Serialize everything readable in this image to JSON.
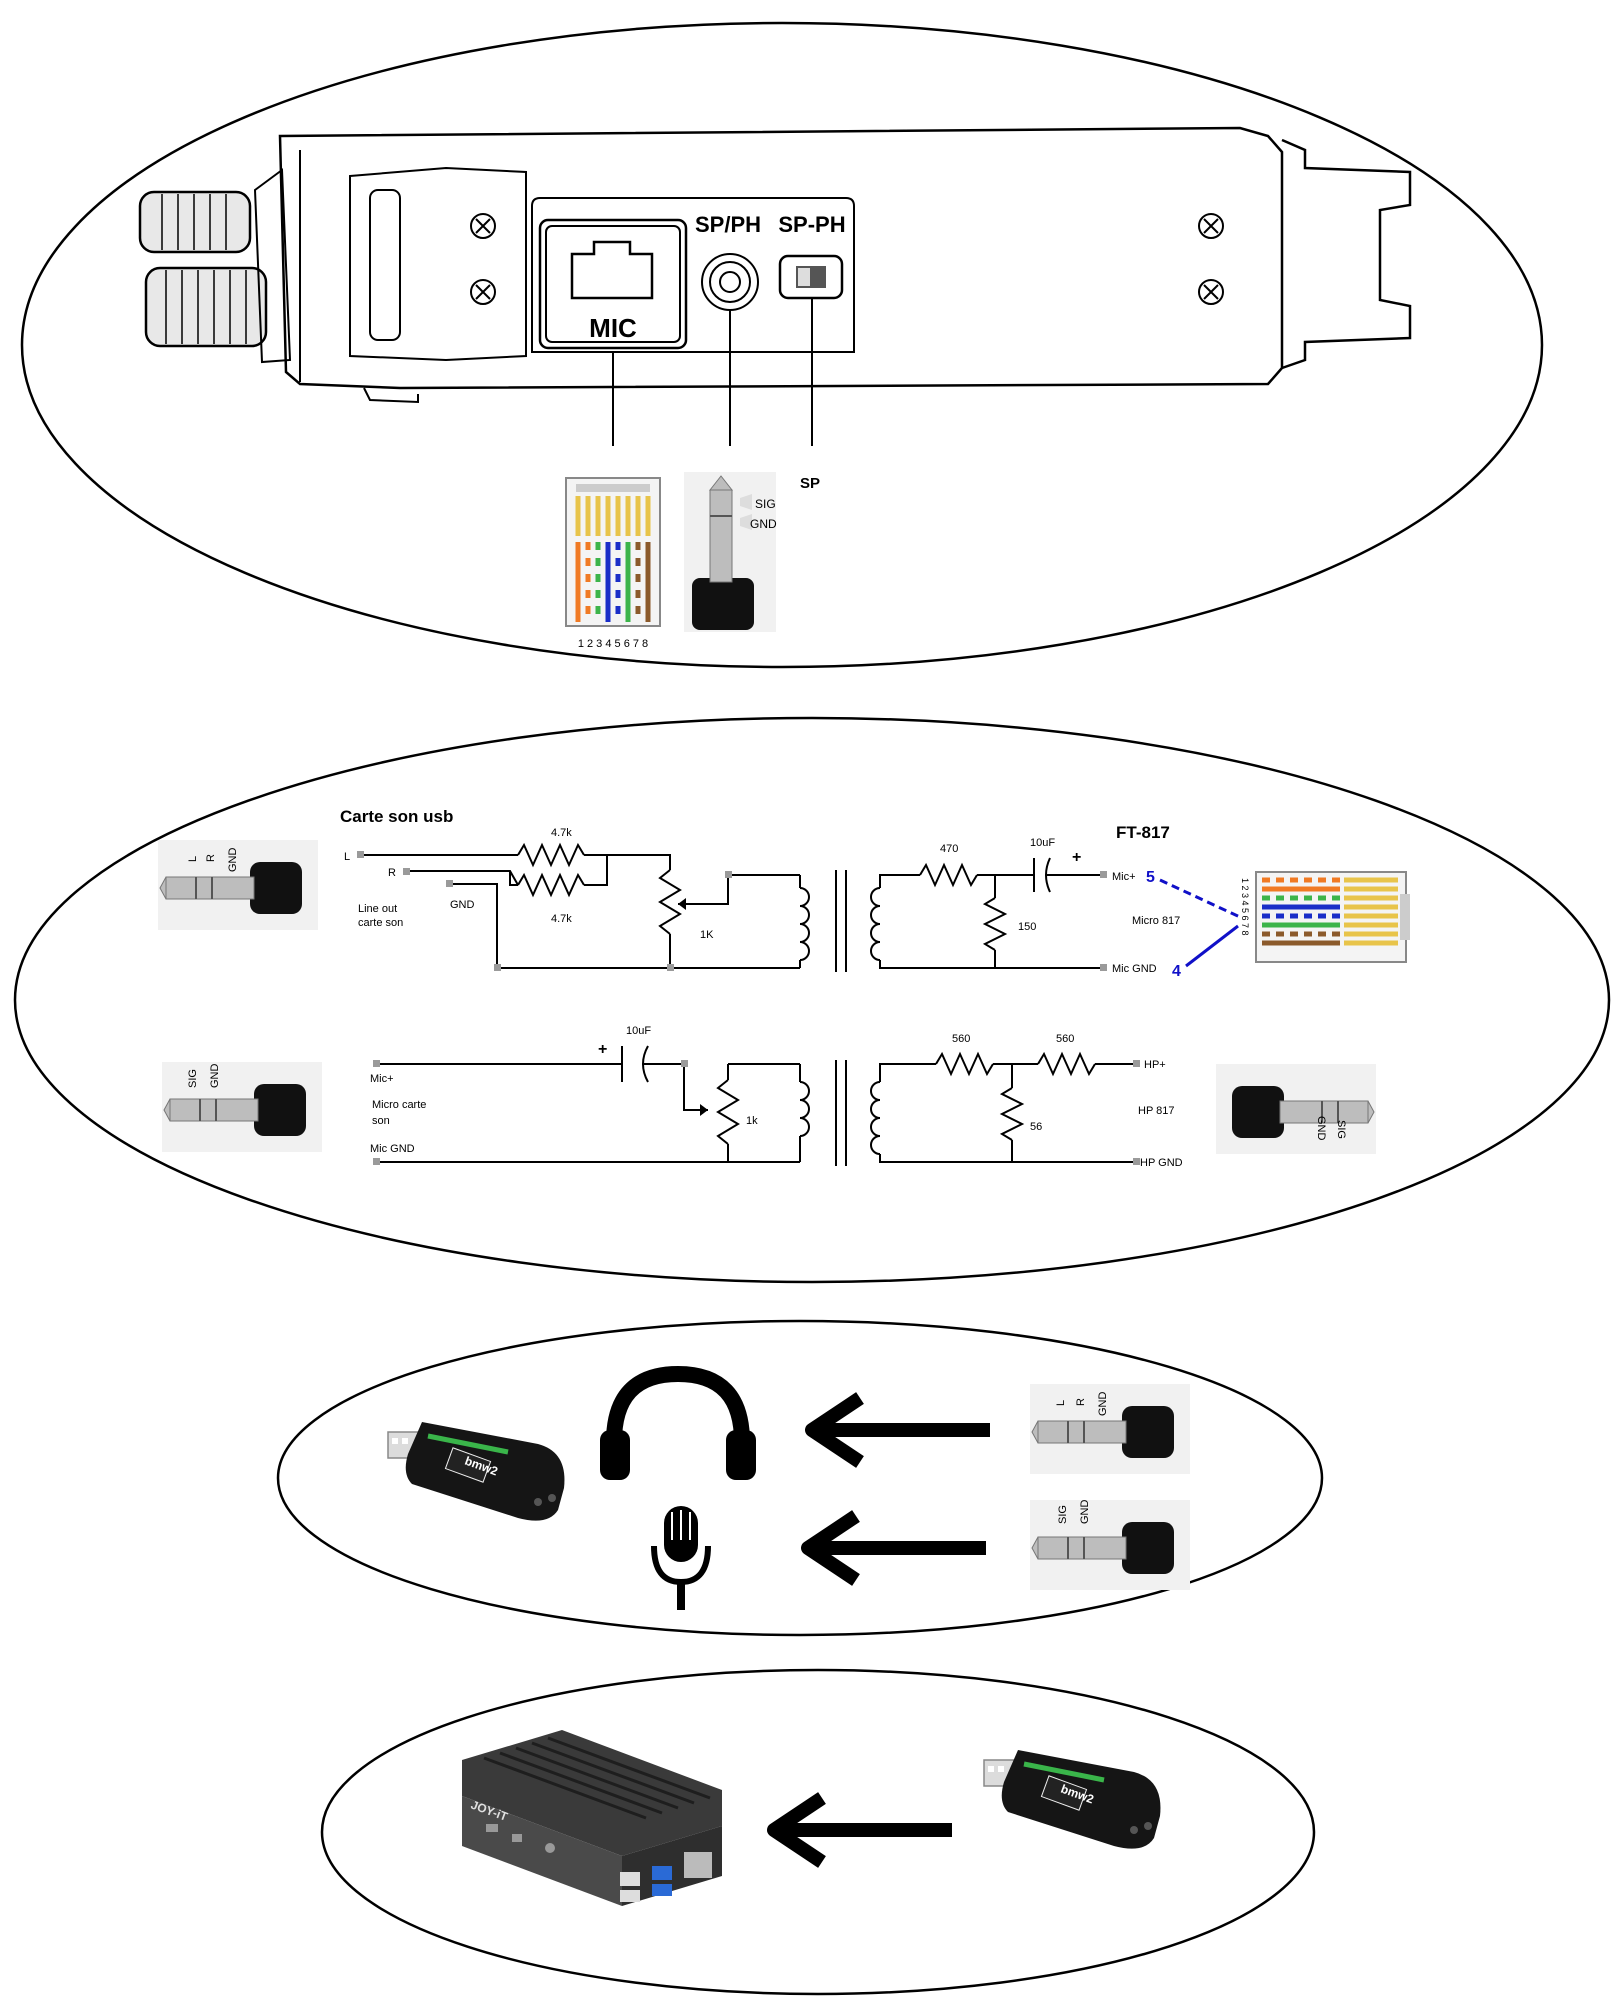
{
  "radio": {
    "labels": {
      "mic": "MIC",
      "spph": "SP/PH",
      "sp_ph_switch": "SP-PH",
      "sp": "SP"
    },
    "mic_pins": "1 2 3 4 5 6 7 8",
    "jack_sig": "SIG",
    "jack_gnd": "GND"
  },
  "tx": {
    "title_left": "Carte son usb",
    "title_right": "FT-817",
    "jack": {
      "l": "L",
      "r": "R",
      "gnd": "GND"
    },
    "l_label": "L",
    "r_label": "R",
    "gnd_label": "GND",
    "lineout_1": "Line out",
    "lineout_2": "carte son",
    "r1": "4.7k",
    "r2": "4.7k",
    "pot": "1K",
    "r3": "470",
    "cap": "10uF",
    "cap_plus": "+",
    "r4": "150",
    "mic_plus": "Mic+",
    "pin5": "5",
    "micro817": "Micro 817",
    "mic_gnd": "Mic GND",
    "pin4": "4",
    "rj45_pins": "1 2 3 4 5 6 7 8"
  },
  "rx": {
    "jack": {
      "sig": "SIG",
      "gnd": "GND"
    },
    "mic_plus": "Mic+",
    "micro_1": "Micro carte",
    "micro_2": "son",
    "mic_gnd": "Mic GND",
    "cap": "10uF",
    "cap_plus": "+",
    "pot": "1k",
    "r1": "560",
    "r2": "560",
    "r3": "56",
    "hp_plus": "HP+",
    "hp817": "HP 817",
    "hp_gnd": "HP GND",
    "jack_right": {
      "gnd": "GND",
      "sig": "SIG"
    }
  },
  "usb": {
    "dongle_brand": "bmw2",
    "jack_top": {
      "l": "L",
      "r": "R",
      "gnd": "GND"
    },
    "jack_bottom": {
      "sig": "SIG",
      "gnd": "GND"
    }
  },
  "pi": {
    "case_brand": "JOY-iT",
    "dongle_brand": "bmw2"
  }
}
